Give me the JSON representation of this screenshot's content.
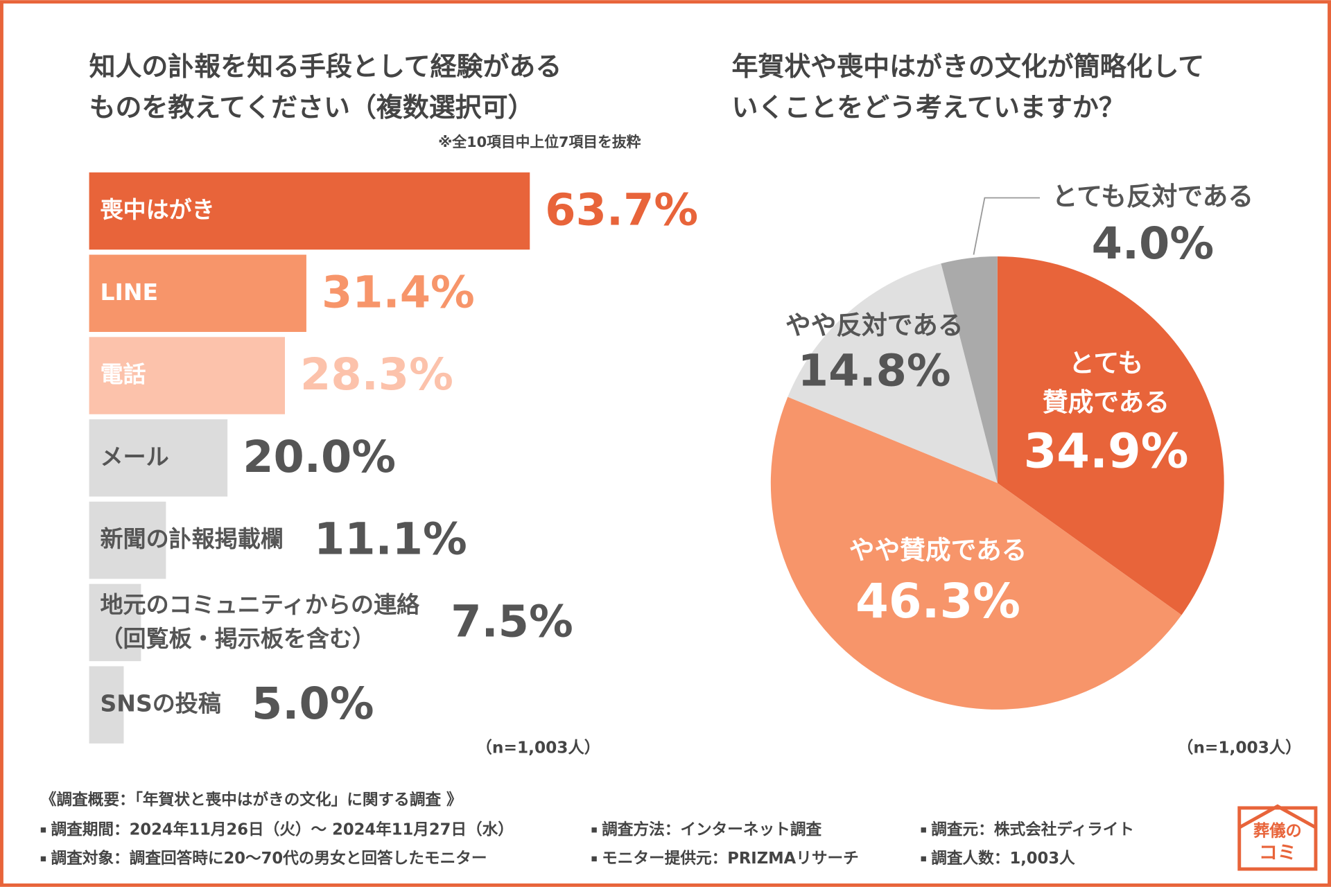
{
  "chart_data": [
    {
      "type": "bar",
      "orientation": "horizontal",
      "title": "知人の訃報を知る手段として経験がある\nものを教えてください（複数選択可）",
      "subtitle": "※全10項目中上位7項目を抜粋",
      "categories": [
        "喪中はがき",
        "LINE",
        "電話",
        "メール",
        "新聞の訃報掲載欄",
        "地元のコミュニティからの連絡\n（回覧板・掲示板を含む）",
        "SNSの投稿"
      ],
      "values": [
        63.7,
        31.4,
        28.3,
        20.0,
        11.1,
        7.5,
        5.0
      ],
      "value_labels": [
        "63.7%",
        "31.4%",
        "28.3%",
        "20.0%",
        "11.1%",
        "7.5%",
        "5.0%"
      ],
      "colors": [
        "#e8643a",
        "#f7956a",
        "#fcc2ab",
        "#dcdcdc",
        "#dcdcdc",
        "#dcdcdc",
        "#dcdcdc"
      ],
      "label_colors": [
        "#e8643a",
        "#f7956a",
        "#fcc2ab",
        "#555555",
        "#555555",
        "#555555",
        "#555555"
      ],
      "sample_size": "（n=1,003人）"
    },
    {
      "type": "pie",
      "title": "年賀状や喪中はがきの文化が簡略化して\nいくことをどう考えていますか？",
      "categories": [
        "とても\n賛成である",
        "やや賛成である",
        "やや反対である",
        "とても反対である"
      ],
      "values": [
        34.9,
        46.3,
        14.8,
        4.0
      ],
      "value_labels": [
        "34.9%",
        "46.3%",
        "14.8%",
        "4.0%"
      ],
      "colors": [
        "#e8643a",
        "#f7956a",
        "#e0e0e0",
        "#aaaaaa"
      ],
      "sample_size": "（n=1,003人）"
    }
  ],
  "footer": {
    "heading": "《調査概要：「年賀状と喪中はがきの文化」に関する調査 》",
    "items": [
      [
        "調査期間：2024年11月26日（火）～ 2024年11月27日（水）",
        "調査方法：インターネット調査",
        "調査元：株式会社ディライト"
      ],
      [
        "調査対象：調査回答時に20～70代の男女と回答したモニター",
        "モニター提供元：PRIZMAリサーチ",
        "調査人数：1,003人"
      ]
    ]
  },
  "logo": [
    "葬儀の",
    "コミ"
  ]
}
